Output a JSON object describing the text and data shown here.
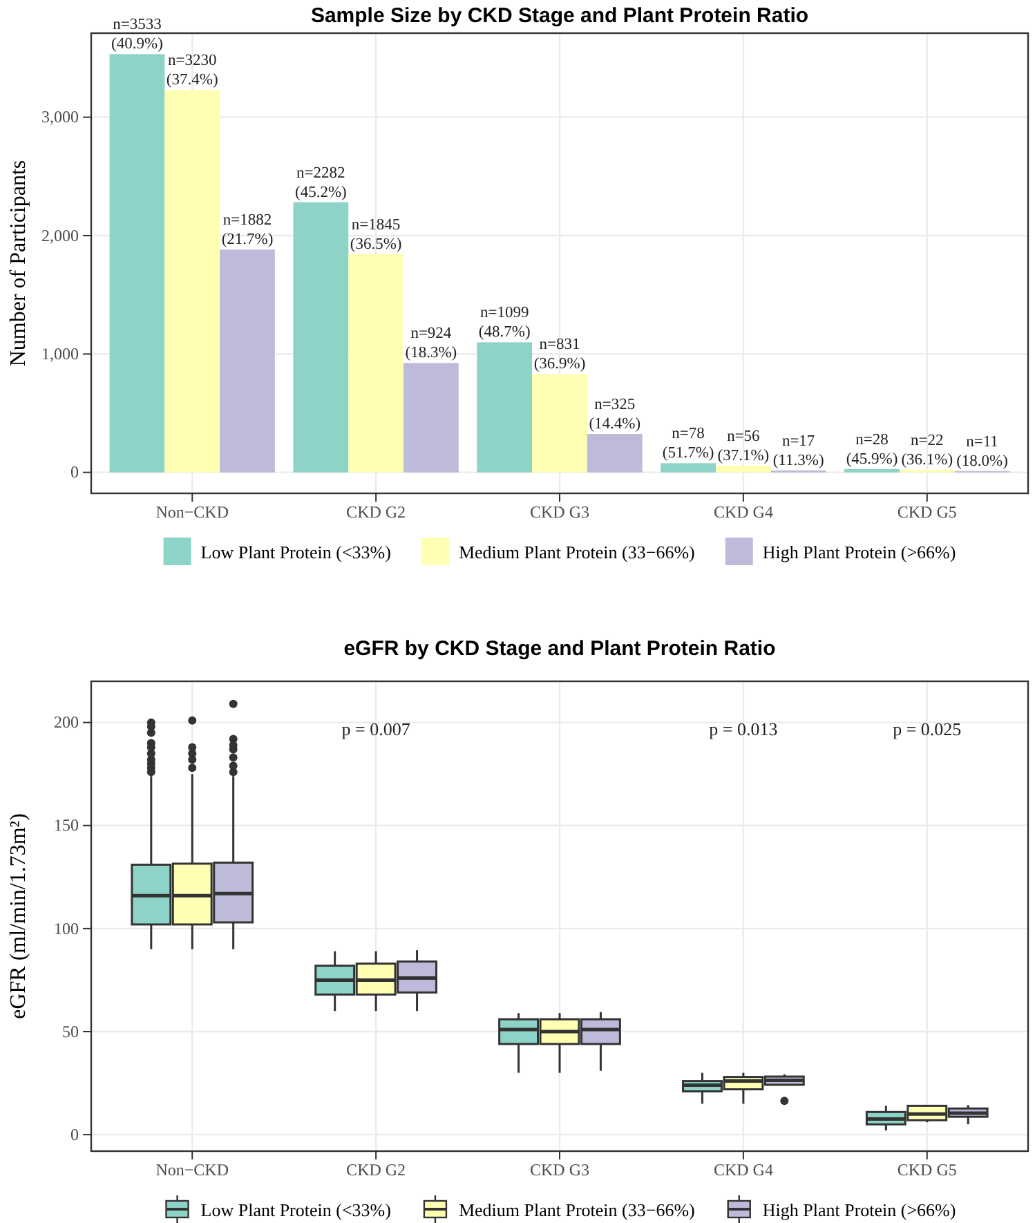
{
  "chart_data": [
    {
      "type": "bar",
      "title": "Sample Size by CKD Stage and Plant Protein Ratio",
      "ylabel": "Number of Participants",
      "categories": [
        "Non−CKD",
        "CKD G2",
        "CKD G3",
        "CKD G4",
        "CKD G5"
      ],
      "ylim": [
        -177,
        3710
      ],
      "yticks": [
        0,
        {
          "value": 1000,
          "label": "1,000"
        },
        {
          "value": 2000,
          "label": "2,000"
        },
        {
          "value": 3000,
          "label": "3,000"
        }
      ],
      "grid": true,
      "legend": "bottom",
      "series": [
        {
          "name": "Low Plant Protein (<33%)",
          "color": "#8dd3c7",
          "values": [
            3533,
            2282,
            1099,
            78,
            28
          ],
          "value_labels": [
            "n=3533\n(40.9%)",
            "n=2282\n(45.2%)",
            "n=1099\n(48.7%)",
            "n=78\n(51.7%)",
            "n=28\n(45.9%)"
          ]
        },
        {
          "name": "Medium Plant Protein (33−66%)",
          "color": "#ffffb3",
          "values": [
            3230,
            1845,
            831,
            56,
            22
          ],
          "value_labels": [
            "n=3230\n(37.4%)",
            "n=1845\n(36.5%)",
            "n=831\n(36.9%)",
            "n=56\n(37.1%)",
            "n=22\n(36.1%)"
          ]
        },
        {
          "name": "High Plant Protein (>66%)",
          "color": "#bebada",
          "values": [
            1882,
            924,
            325,
            17,
            11
          ],
          "value_labels": [
            "n=1882\n(21.7%)",
            "n=924\n(18.3%)",
            "n=325\n(14.4%)",
            "n=17\n(11.3%)",
            "n=11\n(18.0%)"
          ]
        }
      ]
    },
    {
      "type": "box",
      "title": "eGFR by CKD Stage and Plant Protein Ratio",
      "ylabel": "eGFR (ml/min/1.73m²)",
      "categories": [
        "Non−CKD",
        "CKD G2",
        "CKD G3",
        "CKD G4",
        "CKD G5"
      ],
      "ylim": [
        -8,
        220
      ],
      "yticks": [
        0,
        50,
        100,
        150,
        200
      ],
      "grid": true,
      "legend": "bottom",
      "annotations": [
        "p = 0.007",
        "p = 0.013",
        "p = 0.025"
      ],
      "series": [
        {
          "name": "Low Plant Protein (<33%)",
          "color": "#8dd3c7",
          "boxes": [
            {
              "low": 90,
              "q1": 102,
              "median": 116,
              "q3": 131,
              "high": 174,
              "outliers": [
                176,
                178,
                180,
                182,
                185,
                188,
                190,
                195,
                198,
                200
              ]
            },
            {
              "low": 60,
              "q1": 68,
              "median": 75,
              "q3": 82,
              "high": 89
            },
            {
              "low": 30,
              "q1": 44,
              "median": 51,
              "q3": 56,
              "high": 59
            },
            {
              "low": 15,
              "q1": 21,
              "median": 24,
              "q3": 26,
              "high": 30
            },
            {
              "low": 2,
              "q1": 5,
              "median": 7.6,
              "q3": 11,
              "high": 14
            }
          ]
        },
        {
          "name": "Medium Plant Protein (33−66%)",
          "color": "#ffffb3",
          "boxes": [
            {
              "low": 90,
              "q1": 102,
              "median": 116,
              "q3": 131.5,
              "high": 175,
              "outliers": [
                178,
                182,
                185,
                188,
                201
              ]
            },
            {
              "low": 60,
              "q1": 68,
              "median": 75,
              "q3": 83,
              "high": 89
            },
            {
              "low": 30,
              "q1": 44,
              "median": 50,
              "q3": 56,
              "high": 59
            },
            {
              "low": 15,
              "q1": 22,
              "median": 26,
              "q3": 28,
              "high": 30
            },
            {
              "low": 6,
              "q1": 7,
              "median": 10,
              "q3": 14,
              "high": 14
            }
          ]
        },
        {
          "name": "High Plant Protein (>66%)",
          "color": "#bebada",
          "boxes": [
            {
              "low": 90,
              "q1": 103,
              "median": 117,
              "q3": 132,
              "high": 174,
              "outliers": [
                176,
                179,
                183,
                187,
                189,
                192,
                209
              ]
            },
            {
              "low": 60,
              "q1": 69,
              "median": 76,
              "q3": 84,
              "high": 89.5
            },
            {
              "low": 31,
              "q1": 44,
              "median": 51,
              "q3": 56,
              "high": 59.5
            },
            {
              "low": 24,
              "q1": 24.2,
              "median": 26.4,
              "q3": 28.2,
              "high": 29.3,
              "outliers": [
                16.4
              ]
            },
            {
              "low": 5,
              "q1": 8.7,
              "median": 10.4,
              "q3": 12.7,
              "high": 14.4
            }
          ]
        }
      ]
    }
  ]
}
